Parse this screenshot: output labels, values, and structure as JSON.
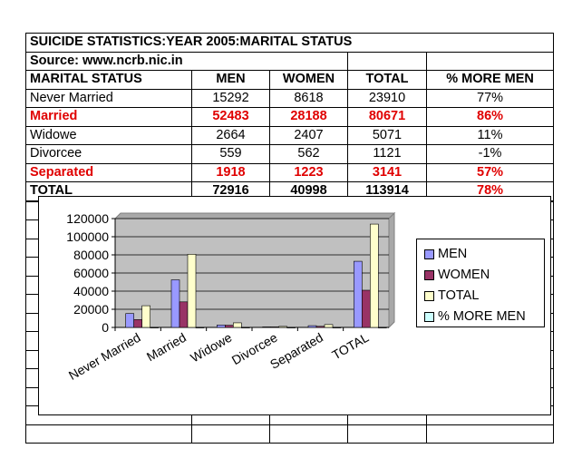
{
  "header": {
    "title": "SUICIDE STATISTICS:YEAR 2005:MARITAL STATUS",
    "source": "Source: www.ncrb.nic.in"
  },
  "table": {
    "columns": [
      "MARITAL STATUS",
      "MEN",
      "WOMEN",
      "TOTAL",
      "% MORE MEN"
    ],
    "rows": [
      [
        "Never Married",
        "15292",
        "8618",
        "23910",
        "77%"
      ],
      [
        "Married",
        "52483",
        "28188",
        "80671",
        "86%"
      ],
      [
        "Widowe",
        "2664",
        "2407",
        "5071",
        "11%"
      ],
      [
        "Divorcee",
        "559",
        "562",
        "1121",
        "-1%"
      ],
      [
        "Separated",
        "1918",
        "1223",
        "3141",
        "57%"
      ],
      [
        "TOTAL",
        "72916",
        "40998",
        "113914",
        "78%"
      ]
    ]
  },
  "colors": {
    "men": "#9999ff",
    "women": "#993366",
    "total": "#ffffcc",
    "pct": "#ccffff",
    "plot_bg": "#c0c0c0",
    "highlight": "#e00000"
  },
  "chart_data": {
    "type": "bar",
    "categories": [
      "Never Married",
      "Married",
      "Widowe",
      "Divorcee",
      "Separated",
      "TOTAL"
    ],
    "series": [
      {
        "name": "MEN",
        "values": [
          15292,
          52483,
          2664,
          559,
          1918,
          72916
        ]
      },
      {
        "name": "WOMEN",
        "values": [
          8618,
          28188,
          2407,
          562,
          1223,
          40998
        ]
      },
      {
        "name": "TOTAL",
        "values": [
          23910,
          80671,
          5071,
          1121,
          3141,
          113914
        ]
      },
      {
        "name": "% MORE MEN",
        "values": [
          0.77,
          0.86,
          0.11,
          -0.01,
          0.57,
          0.78
        ]
      }
    ],
    "ylim": [
      0,
      120000
    ],
    "yticks": [
      "120000",
      "100000",
      "80000",
      "60000",
      "40000",
      "20000",
      "0"
    ],
    "grid": true,
    "legend": "right"
  }
}
